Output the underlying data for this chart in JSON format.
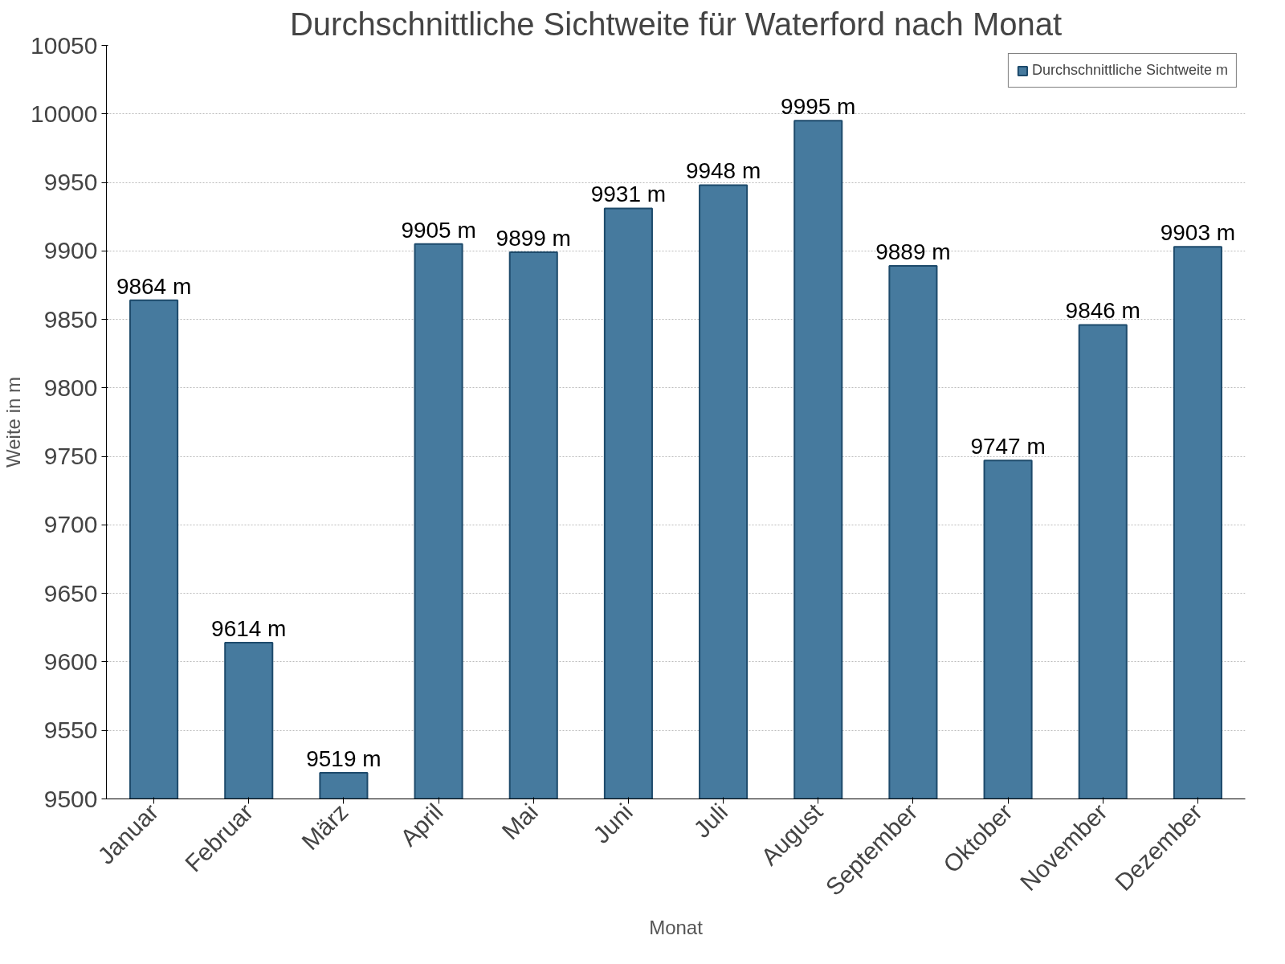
{
  "chart_data": {
    "type": "bar",
    "title": "Durchschnittliche Sichtweite für Waterford nach Monat",
    "xlabel": "Monat",
    "ylabel": "Weite in m",
    "categories": [
      "Januar",
      "Februar",
      "März",
      "April",
      "Mai",
      "Juni",
      "Juli",
      "August",
      "September",
      "Oktober",
      "November",
      "Dezember"
    ],
    "series": [
      {
        "name": "Durchschnittliche Sichtweite m",
        "color": "#467a9e",
        "values": [
          9864,
          9614,
          9519,
          9905,
          9899,
          9931,
          9948,
          9995,
          9889,
          9747,
          9846,
          9903
        ],
        "value_labels": [
          "9864 m",
          "9614 m",
          "9519 m",
          "9905 m",
          "9899 m",
          "9931 m",
          "9948 m",
          "9995 m",
          "9889 m",
          "9747 m",
          "9846 m",
          "9903 m"
        ]
      }
    ],
    "ylim": [
      9500,
      10050
    ],
    "yticks": [
      9500,
      9550,
      9600,
      9650,
      9700,
      9750,
      9800,
      9850,
      9900,
      9950,
      10000,
      10050
    ],
    "grid": "y",
    "legend": "top right"
  }
}
